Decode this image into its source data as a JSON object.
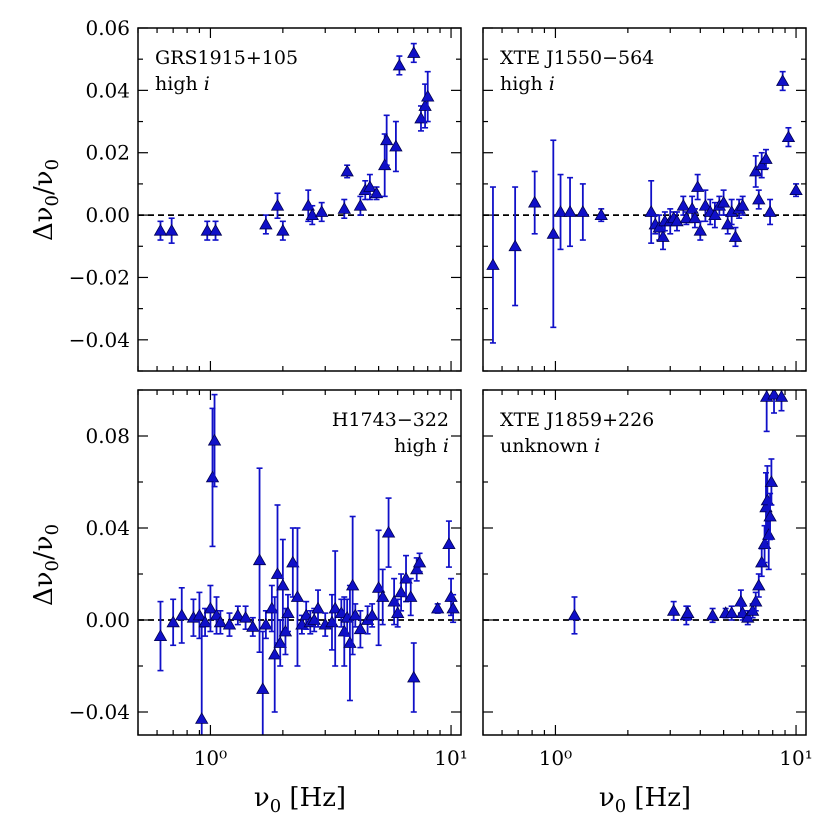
{
  "figure": {
    "xlabel": "ν0 [Hz]",
    "ylabel": "Δν0/ν0",
    "marker_color": "#1010c8",
    "reference_line": 0
  },
  "chart_data": [
    {
      "id": "grs1915",
      "type": "scatter",
      "source": "GRS1915+105",
      "inclination": "high i",
      "x_scale": "log",
      "xlim": [
        0.5,
        11
      ],
      "ylim": [
        -0.05,
        0.06
      ],
      "yticks": [
        "0.06",
        "0.04",
        "0.02",
        "0.00",
        "−0.02",
        "−0.04"
      ],
      "xticks": [],
      "points": [
        [
          0.62,
          -0.005,
          0.003
        ],
        [
          0.69,
          -0.005,
          0.004
        ],
        [
          0.97,
          -0.005,
          0.003
        ],
        [
          1.05,
          -0.005,
          0.003
        ],
        [
          1.7,
          -0.003,
          0.003
        ],
        [
          1.9,
          0.003,
          0.004
        ],
        [
          2.0,
          -0.005,
          0.003
        ],
        [
          2.55,
          0.003,
          0.005
        ],
        [
          2.65,
          0.0,
          0.003
        ],
        [
          2.9,
          0.001,
          0.003
        ],
        [
          3.6,
          0.002,
          0.003
        ],
        [
          3.7,
          0.014,
          0.002
        ],
        [
          4.2,
          0.003,
          0.003
        ],
        [
          4.4,
          0.008,
          0.003
        ],
        [
          4.6,
          0.009,
          0.004
        ],
        [
          4.9,
          0.007,
          0.002
        ],
        [
          5.3,
          0.016,
          0.01
        ],
        [
          5.4,
          0.024,
          0.008
        ],
        [
          5.9,
          0.022,
          0.008
        ],
        [
          6.1,
          0.048,
          0.003
        ],
        [
          7.0,
          0.052,
          0.003
        ],
        [
          7.5,
          0.031,
          0.004
        ],
        [
          7.8,
          0.035,
          0.007
        ],
        [
          8.0,
          0.038,
          0.008
        ]
      ]
    },
    {
      "id": "xtej1550",
      "type": "scatter",
      "source": "XTE J1550−564",
      "inclination": "high i",
      "x_scale": "log",
      "xlim": [
        0.5,
        11
      ],
      "ylim": [
        -0.05,
        0.06
      ],
      "yticks": [],
      "xticks": [],
      "points": [
        [
          0.55,
          -0.016,
          0.025
        ],
        [
          0.68,
          -0.01,
          0.019
        ],
        [
          0.82,
          0.004,
          0.01
        ],
        [
          0.98,
          -0.006,
          0.03
        ],
        [
          1.05,
          0.001,
          0.012
        ],
        [
          1.15,
          0.001,
          0.011
        ],
        [
          1.3,
          0.001,
          0.009
        ],
        [
          1.55,
          0.0,
          0.002
        ],
        [
          2.5,
          0.001,
          0.01
        ],
        [
          2.6,
          -0.003,
          0.003
        ],
        [
          2.7,
          -0.004,
          0.004
        ],
        [
          2.8,
          -0.007,
          0.004
        ],
        [
          2.85,
          -0.002,
          0.003
        ],
        [
          3.0,
          -0.002,
          0.004
        ],
        [
          3.1,
          -0.001,
          0.002
        ],
        [
          3.2,
          -0.002,
          0.003
        ],
        [
          3.4,
          0.003,
          0.003
        ],
        [
          3.5,
          -0.001,
          0.002
        ],
        [
          3.7,
          0.002,
          0.004
        ],
        [
          3.8,
          -0.001,
          0.003
        ],
        [
          3.9,
          0.009,
          0.004
        ],
        [
          4.0,
          -0.005,
          0.003
        ],
        [
          4.2,
          0.003,
          0.005
        ],
        [
          4.4,
          0.001,
          0.004
        ],
        [
          4.6,
          0.0,
          0.004
        ],
        [
          4.8,
          0.003,
          0.003
        ],
        [
          5.0,
          0.004,
          0.004
        ],
        [
          5.2,
          -0.003,
          0.003
        ],
        [
          5.4,
          0.001,
          0.004
        ],
        [
          5.6,
          -0.007,
          0.003
        ],
        [
          5.8,
          0.002,
          0.003
        ],
        [
          6.0,
          0.003,
          0.003
        ],
        [
          6.8,
          0.014,
          0.005
        ],
        [
          7.0,
          0.005,
          0.003
        ],
        [
          7.2,
          0.016,
          0.004
        ],
        [
          7.5,
          0.018,
          0.003
        ],
        [
          7.8,
          0.001,
          0.004
        ],
        [
          8.8,
          0.043,
          0.003
        ],
        [
          9.3,
          0.025,
          0.003
        ],
        [
          10.0,
          0.008,
          0.002
        ]
      ]
    },
    {
      "id": "h1743",
      "type": "scatter",
      "source": "H1743−322",
      "inclination": "high i",
      "x_scale": "log",
      "xlim": [
        0.5,
        11
      ],
      "ylim": [
        -0.05,
        0.1
      ],
      "yticks": [
        "0.08",
        "0.04",
        "0.00",
        "−0.04"
      ],
      "xticks": [
        "10⁰",
        "10¹"
      ],
      "points": [
        [
          0.62,
          -0.007,
          0.015
        ],
        [
          0.7,
          -0.001,
          0.01
        ],
        [
          0.76,
          0.002,
          0.012
        ],
        [
          0.85,
          0.001,
          0.008
        ],
        [
          0.9,
          0.002,
          0.01
        ],
        [
          0.92,
          -0.043,
          0.04
        ],
        [
          0.95,
          -0.001,
          0.006
        ],
        [
          1.0,
          0.005,
          0.01
        ],
        [
          1.02,
          0.062,
          0.03
        ],
        [
          1.04,
          0.078,
          0.02
        ],
        [
          1.06,
          0.002,
          0.008
        ],
        [
          1.1,
          -0.001,
          0.005
        ],
        [
          1.2,
          -0.002,
          0.005
        ],
        [
          1.3,
          0.002,
          0.004
        ],
        [
          1.4,
          0.001,
          0.005
        ],
        [
          1.5,
          -0.003,
          0.004
        ],
        [
          1.6,
          0.026,
          0.04
        ],
        [
          1.65,
          -0.03,
          0.025
        ],
        [
          1.7,
          -0.002,
          0.006
        ],
        [
          1.8,
          0.005,
          0.01
        ],
        [
          1.85,
          -0.015,
          0.025
        ],
        [
          1.9,
          0.02,
          0.03
        ],
        [
          1.95,
          -0.01,
          0.01
        ],
        [
          2.0,
          0.015,
          0.02
        ],
        [
          2.05,
          -0.005,
          0.01
        ],
        [
          2.1,
          0.003,
          0.008
        ],
        [
          2.2,
          0.025,
          0.015
        ],
        [
          2.3,
          0.01,
          0.03
        ],
        [
          2.4,
          -0.002,
          0.004
        ],
        [
          2.5,
          0.002,
          0.006
        ],
        [
          2.6,
          -0.001,
          0.005
        ],
        [
          2.7,
          0.0,
          0.005
        ],
        [
          2.8,
          0.005,
          0.008
        ],
        [
          3.0,
          -0.002,
          0.005
        ],
        [
          3.2,
          -0.001,
          0.012
        ],
        [
          3.3,
          0.005,
          0.025
        ],
        [
          3.5,
          0.003,
          0.006
        ],
        [
          3.6,
          -0.005,
          0.015
        ],
        [
          3.7,
          0.001,
          0.008
        ],
        [
          3.8,
          -0.01,
          0.025
        ],
        [
          3.9,
          0.015,
          0.03
        ],
        [
          4.0,
          0.002,
          0.005
        ],
        [
          4.2,
          -0.004,
          0.008
        ],
        [
          4.5,
          0.0,
          0.006
        ],
        [
          4.7,
          0.002,
          0.005
        ],
        [
          5.0,
          0.014,
          0.025
        ],
        [
          5.2,
          0.01,
          0.012
        ],
        [
          5.5,
          0.038,
          0.015
        ],
        [
          5.8,
          0.008,
          0.01
        ],
        [
          6.0,
          0.003,
          0.006
        ],
        [
          6.2,
          0.012,
          0.008
        ],
        [
          6.5,
          0.018,
          0.01
        ],
        [
          6.8,
          0.01,
          0.008
        ],
        [
          7.0,
          -0.025,
          0.015
        ],
        [
          7.2,
          0.022,
          0.005
        ],
        [
          7.4,
          0.025,
          0.004
        ],
        [
          8.8,
          0.005,
          0.002
        ],
        [
          9.8,
          0.033,
          0.01
        ],
        [
          10.0,
          0.01,
          0.008
        ],
        [
          10.2,
          0.005,
          0.006
        ]
      ]
    },
    {
      "id": "xtej1859",
      "type": "scatter",
      "source": "XTE J1859+226",
      "inclination": "unknown i",
      "x_scale": "log",
      "xlim": [
        0.5,
        11
      ],
      "ylim": [
        -0.05,
        0.1
      ],
      "yticks": [],
      "xticks": [
        "10⁰",
        "10¹"
      ],
      "points": [
        [
          1.2,
          0.002,
          0.008
        ],
        [
          3.1,
          0.004,
          0.004
        ],
        [
          3.5,
          0.002,
          0.004
        ],
        [
          3.55,
          0.003,
          0.003
        ],
        [
          4.5,
          0.002,
          0.003
        ],
        [
          5.1,
          0.003,
          0.002
        ],
        [
          5.4,
          0.003,
          0.003
        ],
        [
          5.9,
          0.008,
          0.005
        ],
        [
          6.0,
          0.003,
          0.003
        ],
        [
          6.3,
          0.001,
          0.003
        ],
        [
          6.6,
          0.004,
          0.003
        ],
        [
          6.8,
          0.008,
          0.004
        ],
        [
          7.0,
          0.015,
          0.005
        ],
        [
          7.2,
          0.025,
          0.006
        ],
        [
          7.4,
          0.033,
          0.008
        ],
        [
          7.5,
          0.049,
          0.015
        ],
        [
          7.6,
          0.052,
          0.015
        ],
        [
          7.7,
          0.037,
          0.015
        ],
        [
          7.8,
          0.045,
          0.01
        ],
        [
          7.9,
          0.06,
          0.01
        ],
        [
          7.55,
          0.097,
          0.015
        ],
        [
          8.1,
          0.098,
          0.008
        ],
        [
          8.7,
          0.097,
          0.006
        ]
      ]
    }
  ]
}
